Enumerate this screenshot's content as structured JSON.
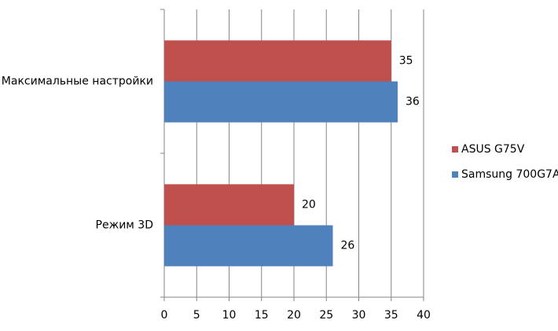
{
  "chart_data": {
    "type": "bar",
    "orientation": "horizontal",
    "categories": [
      "Максимальные настройки",
      "Режим 3D"
    ],
    "series": [
      {
        "name": "ASUS G75V",
        "color": "#c0504d",
        "values": [
          35,
          20
        ]
      },
      {
        "name": "Samsung 700G7A",
        "color": "#4f81bd",
        "values": [
          36,
          26
        ]
      }
    ],
    "xlim": [
      0,
      40
    ],
    "xticks": [
      0,
      5,
      10,
      15,
      20,
      25,
      30,
      35,
      40
    ],
    "grid": true,
    "legend": "right"
  }
}
